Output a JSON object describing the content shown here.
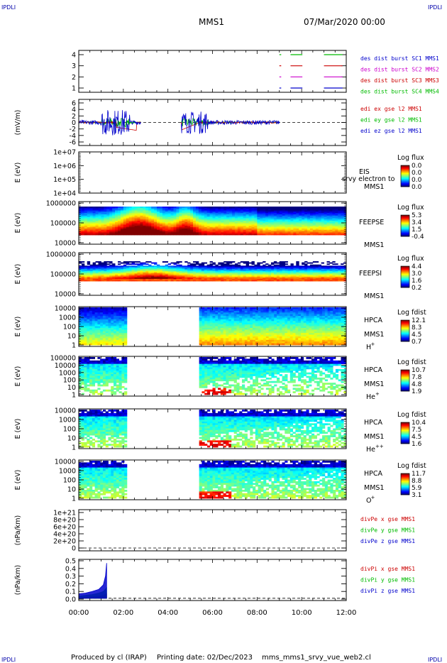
{
  "header": {
    "corner_label": "IPDLI",
    "title": "MMS1",
    "date": "07/Mar/2020 00:00"
  },
  "footer": {
    "producer": "Produced by cl (IRAP)",
    "printing": "Printing date: 02/Dec/2023",
    "file": "mms_mms1_srvy_vue_web2.cl"
  },
  "colors": {
    "blue": "#0000cc",
    "green": "#00bb00",
    "red": "#cc0000",
    "magenta": "#cc00cc",
    "spectrum": [
      "#00007f",
      "#0000ff",
      "#0080ff",
      "#00ffff",
      "#80ff80",
      "#ffff00",
      "#ff8000",
      "#ff0000",
      "#800000"
    ]
  },
  "chart_data": {
    "type": "stacked time-series",
    "x_range": [
      "00:00",
      "12:00"
    ],
    "x_ticks": [
      "00:00",
      "02:00",
      "04:00",
      "06:00",
      "08:00",
      "10:00",
      "12:00"
    ],
    "panels": [
      {
        "id": "burst",
        "ylim": [
          0.5,
          4.5
        ],
        "yticks": [
          "1",
          "2",
          "3",
          "4"
        ],
        "legend": [
          {
            "label": "des dist burst SC1 MMS1",
            "color": "#0000cc"
          },
          {
            "label": "des dist burst SC2 MMS2",
            "color": "#cc00cc"
          },
          {
            "label": "des dist burst SC3 MMS3",
            "color": "#cc0000"
          },
          {
            "label": "des dist burst SC4 MMS4",
            "color": "#00bb00"
          }
        ],
        "intervals": [
          {
            "level": 4,
            "color": "#00bb00",
            "segments": [
              [
                9.0,
                9.05
              ],
              [
                9.5,
                10.0
              ],
              [
                11.0,
                11.8
              ]
            ]
          },
          {
            "level": 3,
            "color": "#cc0000",
            "segments": [
              [
                9.0,
                9.05
              ],
              [
                9.5,
                10.0
              ],
              [
                11.0,
                11.8
              ]
            ]
          },
          {
            "level": 2,
            "color": "#cc00cc",
            "segments": [
              [
                9.0,
                9.05
              ],
              [
                9.5,
                10.0
              ],
              [
                11.0,
                11.8
              ]
            ]
          },
          {
            "level": 1,
            "color": "#0000cc",
            "segments": [
              [
                9.0,
                9.05
              ],
              [
                9.5,
                10.0
              ],
              [
                11.0,
                11.8
              ]
            ]
          }
        ]
      },
      {
        "id": "edi",
        "ylabel": "(mV/m)",
        "ylim": [
          -7,
          7
        ],
        "yticks": [
          "6",
          "4",
          "2",
          "0",
          "-2",
          "-4",
          "-6"
        ],
        "legend": [
          {
            "label": "edi ex gse l2 MMS1",
            "color": "#cc0000"
          },
          {
            "label": "edi ey gse l2 MMS1",
            "color": "#00bb00"
          },
          {
            "label": "edi ez gse l2 MMS1",
            "color": "#0000cc"
          }
        ]
      },
      {
        "id": "eis",
        "ylabel": "E (eV)",
        "yticks": [
          "1e+07",
          "1e+06",
          "1e+05",
          "1e+04"
        ],
        "name": [
          "EIS",
          "MMS1"
        ],
        "overlay": "srvy electron to",
        "cbar_title": "Log flux",
        "cbar_ticks": [
          "0.0",
          "0.0",
          "0.0",
          "0.0"
        ]
      },
      {
        "id": "feepse",
        "ylabel": "E (eV)",
        "yticks": [
          "1000000",
          "100000",
          "10000"
        ],
        "name": [
          "FEEPSE",
          "MMS1"
        ],
        "cbar_title": "Log flux",
        "cbar_ticks": [
          "5.3",
          "3.4",
          "1.5",
          "-0.4"
        ]
      },
      {
        "id": "feepsi",
        "ylabel": "E (eV)",
        "yticks": [
          "1000000",
          "100000",
          "10000"
        ],
        "name": [
          "FEEPSI",
          "MMS1"
        ],
        "cbar_title": "Log flux",
        "cbar_ticks": [
          "4.4",
          "3.0",
          "1.6",
          "0.2"
        ]
      },
      {
        "id": "hpca_h",
        "ylabel": "E (eV)",
        "yticks": [
          "10000",
          "1000",
          "100",
          "10",
          "1"
        ],
        "name": [
          "HPCA",
          "MMS1"
        ],
        "species": "H",
        "charge": "+",
        "cbar_title": "Log fdist",
        "cbar_ticks": [
          "12.1",
          "8.3",
          "4.5",
          "0.7"
        ],
        "data_intervals": [
          [
            0.0,
            2.2
          ],
          [
            5.4,
            12.0
          ]
        ]
      },
      {
        "id": "hpca_he",
        "ylabel": "E (eV)",
        "yticks": [
          "100000",
          "10000",
          "1000",
          "100",
          "10",
          "1"
        ],
        "name": [
          "HPCA",
          "MMS1"
        ],
        "species": "He",
        "charge": "+",
        "cbar_title": "Log fdist",
        "cbar_ticks": [
          "10.7",
          "7.8",
          "4.8",
          "1.9"
        ],
        "data_intervals": [
          [
            0.0,
            2.2
          ],
          [
            5.4,
            12.0
          ]
        ]
      },
      {
        "id": "hpca_hepp",
        "ylabel": "E (eV)",
        "yticks": [
          "10000",
          "1000",
          "100",
          "10",
          "1"
        ],
        "name": [
          "HPCA",
          "MMS1"
        ],
        "species": "He",
        "charge": "++",
        "cbar_title": "Log fdist",
        "cbar_ticks": [
          "10.4",
          "7.5",
          "4.5",
          "1.6"
        ],
        "data_intervals": [
          [
            0.0,
            2.2
          ],
          [
            5.4,
            12.0
          ]
        ]
      },
      {
        "id": "hpca_o",
        "ylabel": "E (eV)",
        "yticks": [
          "10000",
          "1000",
          "100",
          "10",
          "1"
        ],
        "name": [
          "HPCA",
          "MMS1"
        ],
        "species": "O",
        "charge": "+",
        "cbar_title": "Log fdist",
        "cbar_ticks": [
          "11.7",
          "8.8",
          "5.9",
          "3.1"
        ],
        "data_intervals": [
          [
            0.0,
            2.2
          ],
          [
            5.4,
            12.0
          ]
        ]
      },
      {
        "id": "divpe",
        "ylabel": "(nPa/km)",
        "ylim": [
          -1e+20,
          1.1e+21
        ],
        "yticks": [
          "1e+21",
          "8e+20",
          "6e+20",
          "4e+20",
          "2e+20",
          "0"
        ],
        "legend": [
          {
            "label": "divPe x gse MMS1",
            "color": "#cc0000"
          },
          {
            "label": "divPe y gse MMS1",
            "color": "#00bb00"
          },
          {
            "label": "divPe z gse MMS1",
            "color": "#0000cc"
          }
        ]
      },
      {
        "id": "divpi",
        "ylabel": "(nPa/km)",
        "ylim": [
          -0.03,
          0.52
        ],
        "yticks": [
          "0.5",
          "0.4",
          "0.3",
          "0.2",
          "0.1",
          "0.0"
        ],
        "legend": [
          {
            "label": "divPi x gse MMS1",
            "color": "#cc0000"
          },
          {
            "label": "divPi y gse MMS1",
            "color": "#00bb00"
          },
          {
            "label": "divPi z gse MMS1",
            "color": "#0000cc"
          }
        ],
        "series": [
          {
            "name": "divPi x gse MMS1",
            "color": "#cc0000",
            "x": [
              0.0,
              0.3,
              0.6,
              0.9,
              1.1,
              1.25
            ],
            "y": [
              0.01,
              0.015,
              0.02,
              0.03,
              0.04,
              0.06
            ]
          },
          {
            "name": "divPi y gse MMS1",
            "color": "#00bb00",
            "x": [
              0.0,
              0.3,
              0.6,
              0.9,
              1.1,
              1.25
            ],
            "y": [
              0.03,
              0.04,
              0.05,
              0.07,
              0.09,
              0.14
            ]
          },
          {
            "name": "divPi z gse MMS1",
            "color": "#0000cc",
            "x": [
              0.0,
              0.3,
              0.6,
              0.9,
              1.1,
              1.2,
              1.25
            ],
            "y": [
              0.06,
              0.07,
              0.09,
              0.12,
              0.18,
              0.3,
              0.47
            ]
          }
        ]
      }
    ]
  }
}
